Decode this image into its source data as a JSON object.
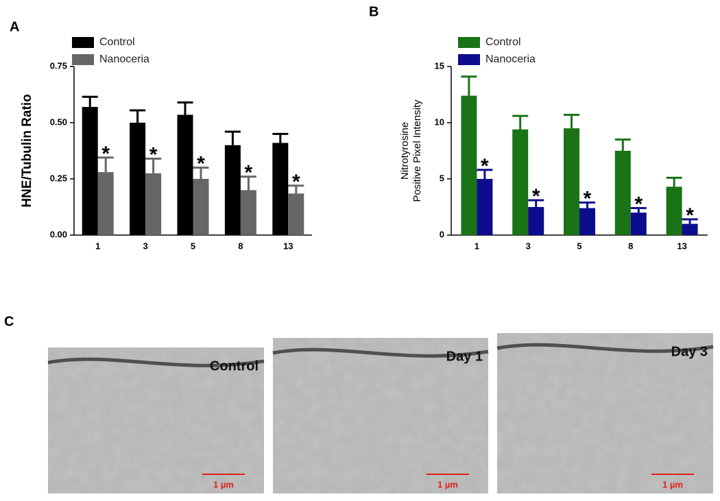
{
  "panel_labels": [
    "A",
    "B",
    "C"
  ],
  "chart_data": [
    {
      "type": "bar",
      "ylabel": [
        "HNE/Tubulin Ratio"
      ],
      "categories": [
        "1",
        "3",
        "5",
        "8",
        "13"
      ],
      "ylim": [
        0,
        0.75
      ],
      "yticks": [
        {
          "value": 0,
          "label": "0.00"
        },
        0.25,
        {
          "value": 0.5,
          "label": "0.50"
        },
        0.75
      ],
      "legend": "upper left",
      "series": [
        {
          "name": "Control",
          "color": "#000000",
          "values": [
            0.57,
            0.5,
            0.535,
            0.4,
            0.41
          ],
          "errors": [
            0.045,
            0.055,
            0.055,
            0.06,
            0.04
          ]
        },
        {
          "name": "Nanoceria",
          "color": "#666666",
          "values": [
            0.28,
            0.275,
            0.25,
            0.2,
            0.185
          ],
          "errors": [
            0.065,
            0.065,
            0.05,
            0.06,
            0.035
          ],
          "labels": [
            "*",
            "*",
            "*",
            "*",
            "*"
          ]
        }
      ]
    },
    {
      "type": "bar",
      "ylabel": [
        "Nitrotyrosine",
        "Positive Pixel Intensity"
      ],
      "categories": [
        "1",
        "3",
        "5",
        "8",
        "13"
      ],
      "ylim": [
        0,
        15
      ],
      "yticks": [
        0,
        5,
        10,
        15
      ],
      "legend": "upper left",
      "series": [
        {
          "name": "Control",
          "color": "#1a7317",
          "values": [
            12.4,
            9.4,
            9.5,
            7.5,
            4.3
          ],
          "errors": [
            1.7,
            1.2,
            1.2,
            1.0,
            0.8
          ]
        },
        {
          "name": "Nanoceria",
          "color": "#0c0c8c",
          "values": [
            5.0,
            2.5,
            2.4,
            2.0,
            1.0
          ],
          "errors": [
            0.8,
            0.6,
            0.5,
            0.4,
            0.4
          ],
          "labels": [
            "*",
            "*",
            "*",
            "*",
            "*"
          ]
        }
      ]
    }
  ],
  "micrographs": [
    {
      "title": "Control",
      "scale_bar": "1 µm"
    },
    {
      "title": "Day 1",
      "scale_bar": "1 µm"
    },
    {
      "title": "Day 3",
      "scale_bar": "1 µm"
    }
  ]
}
